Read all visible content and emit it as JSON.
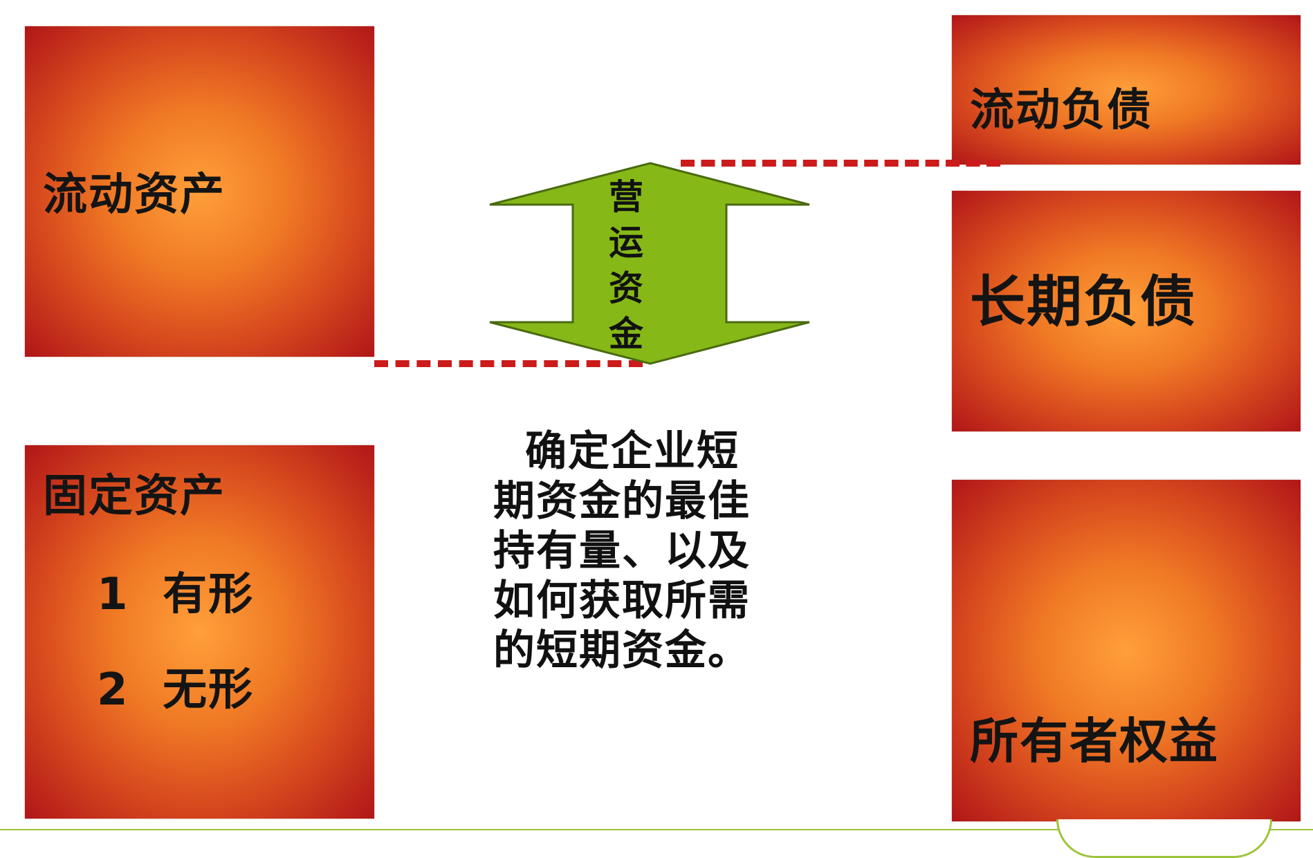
{
  "boxes": {
    "current_assets": "流动资产",
    "fixed_assets": "固定资产",
    "fixed_tangible": "1  有形",
    "fixed_intangible": "2  无形",
    "current_liabilities": "流动负债",
    "long_term_liabilities": "长期负债",
    "owners_equity": "所有者权益"
  },
  "arrow": {
    "chars": [
      "营",
      "运",
      "资",
      "金"
    ]
  },
  "center_text": {
    "lines": [
      "确定企业短",
      "期资金的最佳",
      "持有量、以及",
      "如何获取所需",
      "的短期资金。"
    ]
  },
  "colors": {
    "box_outer": "#b01618",
    "box_inner": "#ff9f3a",
    "arrow_fill": "#86b817",
    "dash": "#cc1b1b",
    "footer_line": "#9cc43a"
  }
}
